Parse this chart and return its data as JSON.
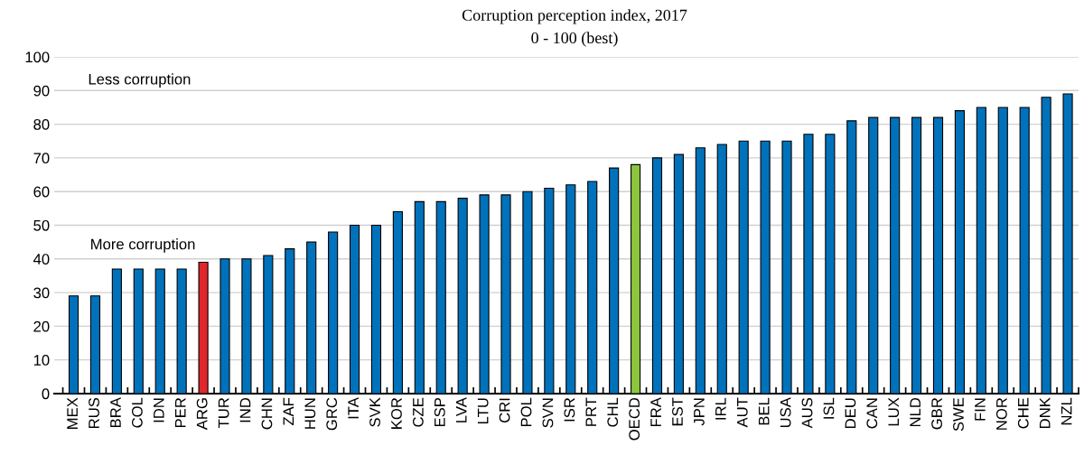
{
  "chart_data": {
    "type": "bar",
    "title": "Corruption perception index, 2017",
    "subtitle": "0 - 100 (best)",
    "categories": [
      "MEX",
      "RUS",
      "BRA",
      "COL",
      "IDN",
      "PER",
      "ARG",
      "TUR",
      "IND",
      "CHN",
      "ZAF",
      "HUN",
      "GRC",
      "ITA",
      "SVK",
      "KOR",
      "CZE",
      "ESP",
      "LVA",
      "LTU",
      "CRI",
      "POL",
      "SVN",
      "ISR",
      "PRT",
      "CHL",
      "OECD",
      "FRA",
      "EST",
      "JPN",
      "IRL",
      "AUT",
      "BEL",
      "USA",
      "AUS",
      "ISL",
      "DEU",
      "CAN",
      "LUX",
      "NLD",
      "GBR",
      "SWE",
      "FIN",
      "NOR",
      "CHE",
      "DNK",
      "NZL"
    ],
    "values": [
      29,
      29,
      37,
      37,
      37,
      37,
      39,
      40,
      40,
      41,
      43,
      45,
      48,
      50,
      50,
      54,
      57,
      57,
      58,
      59,
      59,
      60,
      61,
      62,
      63,
      67,
      68,
      70,
      71,
      73,
      74,
      75,
      75,
      75,
      77,
      77,
      81,
      82,
      82,
      82,
      82,
      84,
      85,
      85,
      85,
      88,
      89
    ],
    "colors": [
      "#0072bc",
      "#0072bc",
      "#0072bc",
      "#0072bc",
      "#0072bc",
      "#0072bc",
      "#e0272b",
      "#0072bc",
      "#0072bc",
      "#0072bc",
      "#0072bc",
      "#0072bc",
      "#0072bc",
      "#0072bc",
      "#0072bc",
      "#0072bc",
      "#0072bc",
      "#0072bc",
      "#0072bc",
      "#0072bc",
      "#0072bc",
      "#0072bc",
      "#0072bc",
      "#0072bc",
      "#0072bc",
      "#0072bc",
      "#8cc63f",
      "#0072bc",
      "#0072bc",
      "#0072bc",
      "#0072bc",
      "#0072bc",
      "#0072bc",
      "#0072bc",
      "#0072bc",
      "#0072bc",
      "#0072bc",
      "#0072bc",
      "#0072bc",
      "#0072bc",
      "#0072bc",
      "#0072bc",
      "#0072bc",
      "#0072bc",
      "#0072bc",
      "#0072bc",
      "#0072bc"
    ],
    "ylim": [
      0,
      100
    ],
    "yticks": [
      0,
      10,
      20,
      30,
      40,
      50,
      60,
      70,
      80,
      90,
      100
    ],
    "grid": "y",
    "annotations": [
      "Less corruption",
      "More corruption"
    ]
  }
}
